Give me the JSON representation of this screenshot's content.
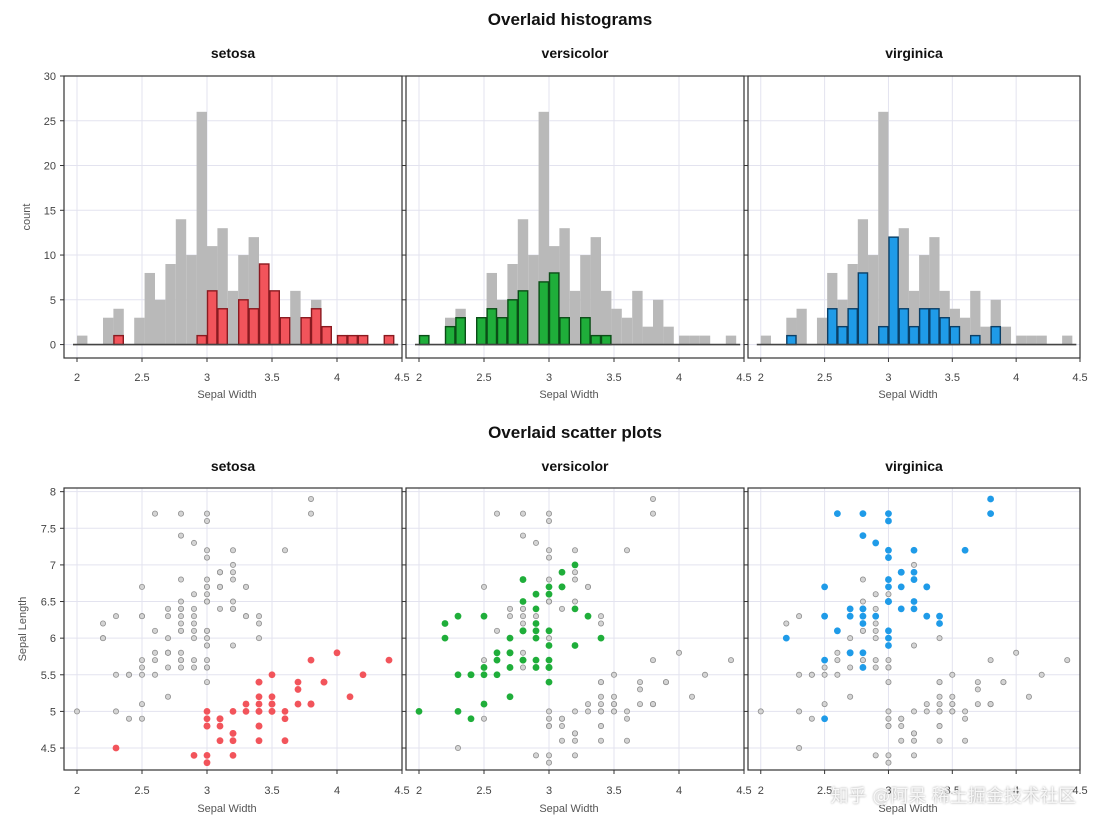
{
  "titles": {
    "histograms": "Overlaid histograms",
    "scatter": "Overlaid scatter plots"
  },
  "watermark": "知乎 @阿呆 稀土掘金技术社区",
  "colors": {
    "gray": "#b9b9b9",
    "setosa": "#f2545b",
    "setosa_edge": "#8a1a20",
    "versicolor": "#1fae3a",
    "versicolor_edge": "#0b4d17",
    "virginica": "#1f9be8",
    "virginica_edge": "#0b3f66"
  },
  "chart_data": [
    {
      "type": "bar",
      "group": "histograms",
      "panels": [
        "setosa",
        "versicolor",
        "virginica"
      ],
      "xlabel": "Sepal Width",
      "ylabel": "count",
      "xlim": [
        1.9,
        4.5
      ],
      "ylim": [
        -1.5,
        30
      ],
      "xticks": [
        2,
        2.5,
        3,
        3.5,
        4,
        4.5
      ],
      "xtick_labels": [
        "2",
        "2.5",
        "3",
        "3.5",
        "4",
        "4.5"
      ],
      "yticks": [
        0,
        5,
        10,
        15,
        20,
        25,
        30
      ],
      "ytick_labels": [
        "0",
        "5",
        "10",
        "15",
        "20",
        "25",
        "30"
      ],
      "bin_width": 0.08,
      "all_bins": [
        [
          2.0,
          1
        ],
        [
          2.2,
          3
        ],
        [
          2.28,
          4
        ],
        [
          2.44,
          3
        ],
        [
          2.52,
          8
        ],
        [
          2.6,
          5
        ],
        [
          2.68,
          9
        ],
        [
          2.76,
          14
        ],
        [
          2.84,
          10
        ],
        [
          2.92,
          26
        ],
        [
          3.0,
          11
        ],
        [
          3.08,
          13
        ],
        [
          3.16,
          6
        ],
        [
          3.24,
          10
        ],
        [
          3.32,
          12
        ],
        [
          3.4,
          6
        ],
        [
          3.48,
          4
        ],
        [
          3.56,
          3
        ],
        [
          3.64,
          6
        ],
        [
          3.72,
          2
        ],
        [
          3.8,
          5
        ],
        [
          3.88,
          2
        ],
        [
          4.0,
          1
        ],
        [
          4.08,
          1
        ],
        [
          4.16,
          1
        ],
        [
          4.36,
          1
        ]
      ],
      "series": [
        {
          "name": "setosa",
          "bins": [
            [
              2.28,
              1
            ],
            [
              2.92,
              1
            ],
            [
              3.0,
              6
            ],
            [
              3.08,
              4
            ],
            [
              3.24,
              5
            ],
            [
              3.32,
              4
            ],
            [
              3.4,
              9
            ],
            [
              3.48,
              6
            ],
            [
              3.56,
              3
            ],
            [
              3.72,
              3
            ],
            [
              3.8,
              4
            ],
            [
              3.88,
              2
            ],
            [
              4.0,
              1
            ],
            [
              4.08,
              1
            ],
            [
              4.16,
              1
            ],
            [
              4.36,
              1
            ]
          ]
        },
        {
          "name": "versicolor",
          "bins": [
            [
              2.0,
              1
            ],
            [
              2.2,
              2
            ],
            [
              2.28,
              3
            ],
            [
              2.44,
              3
            ],
            [
              2.52,
              4
            ],
            [
              2.6,
              3
            ],
            [
              2.68,
              5
            ],
            [
              2.76,
              6
            ],
            [
              2.92,
              7
            ],
            [
              3.0,
              8
            ],
            [
              3.08,
              3
            ],
            [
              3.24,
              3
            ],
            [
              3.32,
              1
            ],
            [
              3.4,
              1
            ]
          ]
        },
        {
          "name": "virginica",
          "bins": [
            [
              2.2,
              1
            ],
            [
              2.52,
              4
            ],
            [
              2.6,
              2
            ],
            [
              2.68,
              4
            ],
            [
              2.76,
              8
            ],
            [
              2.92,
              2
            ],
            [
              3.0,
              12
            ],
            [
              3.08,
              4
            ],
            [
              3.16,
              2
            ],
            [
              3.24,
              4
            ],
            [
              3.32,
              4
            ],
            [
              3.4,
              3
            ],
            [
              3.48,
              2
            ],
            [
              3.64,
              1
            ],
            [
              3.8,
              2
            ]
          ]
        }
      ]
    },
    {
      "type": "scatter",
      "group": "scatter",
      "panels": [
        "setosa",
        "versicolor",
        "virginica"
      ],
      "xlabel": "Sepal Width",
      "ylabel": "Sepal Length",
      "xlim": [
        1.9,
        4.5
      ],
      "ylim": [
        4.2,
        8.05
      ],
      "xticks": [
        2,
        2.5,
        3,
        3.5,
        4,
        4.5
      ],
      "xtick_labels": [
        "2",
        "2.5",
        "3",
        "3.5",
        "4",
        "4.5"
      ],
      "yticks": [
        4.5,
        5,
        5.5,
        6,
        6.5,
        7,
        7.5,
        8
      ],
      "ytick_labels": [
        "4.5",
        "5",
        "5.5",
        "6",
        "6.5",
        "7",
        "7.5",
        "8"
      ],
      "series": [
        {
          "name": "setosa",
          "points": [
            [
              3.5,
              5.1
            ],
            [
              3.0,
              4.9
            ],
            [
              3.2,
              4.7
            ],
            [
              3.1,
              4.6
            ],
            [
              3.6,
              5.0
            ],
            [
              3.9,
              5.4
            ],
            [
              3.4,
              4.6
            ],
            [
              3.4,
              5.0
            ],
            [
              2.9,
              4.4
            ],
            [
              3.1,
              4.9
            ],
            [
              3.7,
              5.4
            ],
            [
              3.4,
              4.8
            ],
            [
              3.0,
              4.8
            ],
            [
              3.0,
              4.3
            ],
            [
              4.0,
              5.8
            ],
            [
              4.4,
              5.7
            ],
            [
              3.9,
              5.4
            ],
            [
              3.5,
              5.1
            ],
            [
              3.8,
              5.7
            ],
            [
              3.8,
              5.1
            ],
            [
              3.4,
              5.4
            ],
            [
              3.7,
              5.1
            ],
            [
              3.6,
              4.6
            ],
            [
              3.3,
              5.1
            ],
            [
              3.4,
              4.8
            ],
            [
              3.0,
              5.0
            ],
            [
              3.4,
              5.0
            ],
            [
              3.5,
              5.2
            ],
            [
              3.4,
              5.2
            ],
            [
              3.2,
              4.7
            ],
            [
              3.1,
              4.8
            ],
            [
              3.4,
              5.4
            ],
            [
              4.1,
              5.2
            ],
            [
              4.2,
              5.5
            ],
            [
              3.1,
              4.9
            ],
            [
              3.2,
              5.0
            ],
            [
              3.5,
              5.5
            ],
            [
              3.6,
              4.9
            ],
            [
              3.0,
              4.4
            ],
            [
              3.4,
              5.1
            ],
            [
              3.5,
              5.0
            ],
            [
              2.3,
              4.5
            ],
            [
              3.2,
              4.4
            ],
            [
              3.5,
              5.0
            ],
            [
              3.8,
              5.1
            ],
            [
              3.0,
              4.8
            ],
            [
              3.8,
              5.1
            ],
            [
              3.2,
              4.6
            ],
            [
              3.7,
              5.3
            ],
            [
              3.3,
              5.0
            ]
          ]
        },
        {
          "name": "versicolor",
          "points": [
            [
              3.2,
              7.0
            ],
            [
              3.2,
              6.4
            ],
            [
              3.1,
              6.9
            ],
            [
              2.3,
              5.5
            ],
            [
              2.8,
              6.5
            ],
            [
              2.8,
              5.7
            ],
            [
              3.3,
              6.3
            ],
            [
              2.4,
              4.9
            ],
            [
              2.9,
              6.6
            ],
            [
              2.7,
              5.2
            ],
            [
              2.0,
              5.0
            ],
            [
              3.0,
              5.9
            ],
            [
              2.2,
              6.0
            ],
            [
              2.9,
              6.1
            ],
            [
              2.9,
              5.6
            ],
            [
              3.1,
              6.7
            ],
            [
              3.0,
              5.6
            ],
            [
              2.7,
              5.8
            ],
            [
              2.2,
              6.2
            ],
            [
              2.5,
              5.6
            ],
            [
              3.2,
              5.9
            ],
            [
              2.8,
              6.1
            ],
            [
              2.5,
              6.3
            ],
            [
              2.8,
              6.1
            ],
            [
              2.9,
              6.4
            ],
            [
              3.0,
              6.6
            ],
            [
              2.8,
              6.8
            ],
            [
              3.0,
              6.7
            ],
            [
              2.9,
              6.0
            ],
            [
              2.6,
              5.7
            ],
            [
              2.4,
              5.5
            ],
            [
              2.4,
              5.5
            ],
            [
              2.7,
              5.8
            ],
            [
              2.7,
              6.0
            ],
            [
              3.0,
              5.4
            ],
            [
              3.4,
              6.0
            ],
            [
              3.1,
              6.7
            ],
            [
              2.3,
              6.3
            ],
            [
              3.0,
              5.6
            ],
            [
              2.5,
              5.5
            ],
            [
              2.6,
              5.5
            ],
            [
              3.0,
              6.1
            ],
            [
              2.6,
              5.8
            ],
            [
              2.3,
              5.0
            ],
            [
              2.7,
              5.6
            ],
            [
              3.0,
              5.7
            ],
            [
              2.9,
              5.7
            ],
            [
              2.9,
              6.2
            ],
            [
              2.5,
              5.1
            ],
            [
              2.8,
              5.7
            ]
          ]
        },
        {
          "name": "virginica",
          "points": [
            [
              3.3,
              6.3
            ],
            [
              2.7,
              5.8
            ],
            [
              3.0,
              7.1
            ],
            [
              2.9,
              6.3
            ],
            [
              3.0,
              6.5
            ],
            [
              3.0,
              7.6
            ],
            [
              2.5,
              4.9
            ],
            [
              2.9,
              7.3
            ],
            [
              2.5,
              6.7
            ],
            [
              3.6,
              7.2
            ],
            [
              3.2,
              6.5
            ],
            [
              2.7,
              6.4
            ],
            [
              3.0,
              6.8
            ],
            [
              2.5,
              5.7
            ],
            [
              2.8,
              5.8
            ],
            [
              3.2,
              6.4
            ],
            [
              3.0,
              6.5
            ],
            [
              3.8,
              7.7
            ],
            [
              2.6,
              7.7
            ],
            [
              2.2,
              6.0
            ],
            [
              3.2,
              6.9
            ],
            [
              2.8,
              5.6
            ],
            [
              2.8,
              7.7
            ],
            [
              2.7,
              6.3
            ],
            [
              3.3,
              6.7
            ],
            [
              3.2,
              7.2
            ],
            [
              2.8,
              6.2
            ],
            [
              3.0,
              6.1
            ],
            [
              2.8,
              6.4
            ],
            [
              3.0,
              7.2
            ],
            [
              2.8,
              7.4
            ],
            [
              3.8,
              7.9
            ],
            [
              2.8,
              6.4
            ],
            [
              2.8,
              6.3
            ],
            [
              2.6,
              6.1
            ],
            [
              3.0,
              7.7
            ],
            [
              3.4,
              6.3
            ],
            [
              3.1,
              6.4
            ],
            [
              3.0,
              6.0
            ],
            [
              3.1,
              6.9
            ],
            [
              3.1,
              6.7
            ],
            [
              3.1,
              6.9
            ],
            [
              2.7,
              5.8
            ],
            [
              3.2,
              6.8
            ],
            [
              3.3,
              6.7
            ],
            [
              3.0,
              6.7
            ],
            [
              2.5,
              6.3
            ],
            [
              3.0,
              6.5
            ],
            [
              3.4,
              6.2
            ],
            [
              3.0,
              5.9
            ]
          ]
        }
      ]
    }
  ]
}
